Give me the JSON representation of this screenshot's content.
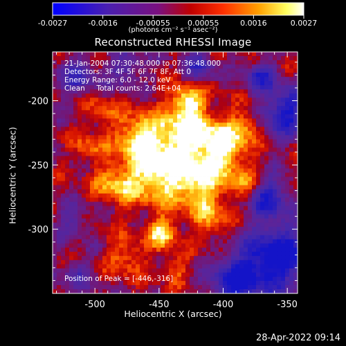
{
  "colorbar": {
    "tick_labels": [
      "-0.0027",
      "-0.0016",
      "-0.00055",
      "0.00055",
      "0.0016",
      "0.0027"
    ],
    "units_label": "(photons cm⁻² s⁻¹ asec⁻²)",
    "range": [
      -0.0027,
      0.0027
    ]
  },
  "chart_data": {
    "type": "heatmap",
    "title": "Reconstructed RHESSI Image",
    "xlabel": "Heliocentric X (arcsec)",
    "ylabel": "Heliocentric Y (arcsec)",
    "xlim": [
      -533,
      -342
    ],
    "ylim": [
      -350,
      -162
    ],
    "x_ticks": [
      "-500",
      "-450",
      "-400",
      "-350"
    ],
    "x_tick_values": [
      -500,
      -450,
      -400,
      -350
    ],
    "y_ticks": [
      "-200",
      "-250",
      "-300"
    ],
    "y_tick_values": [
      -200,
      -250,
      -300
    ],
    "info_lines": [
      "21-Jan-2004 07:30:48.000 to 07:36:48.000",
      "Detectors: 3F 4F 5F 6F 7F 8F, Att 0",
      "Energy Range: 6.0 - 12.0 keV",
      "Clean     Total counts: 2.64E+04"
    ],
    "peak_label": "Position of Peak = [-446,-316]",
    "peak_position": [
      -446,
      -316
    ],
    "colormap": "rainbow-ish blue-purple-red-orange-yellow-white",
    "grid": false
  },
  "footer": {
    "timestamp": "28-Apr-2022 09:14"
  }
}
